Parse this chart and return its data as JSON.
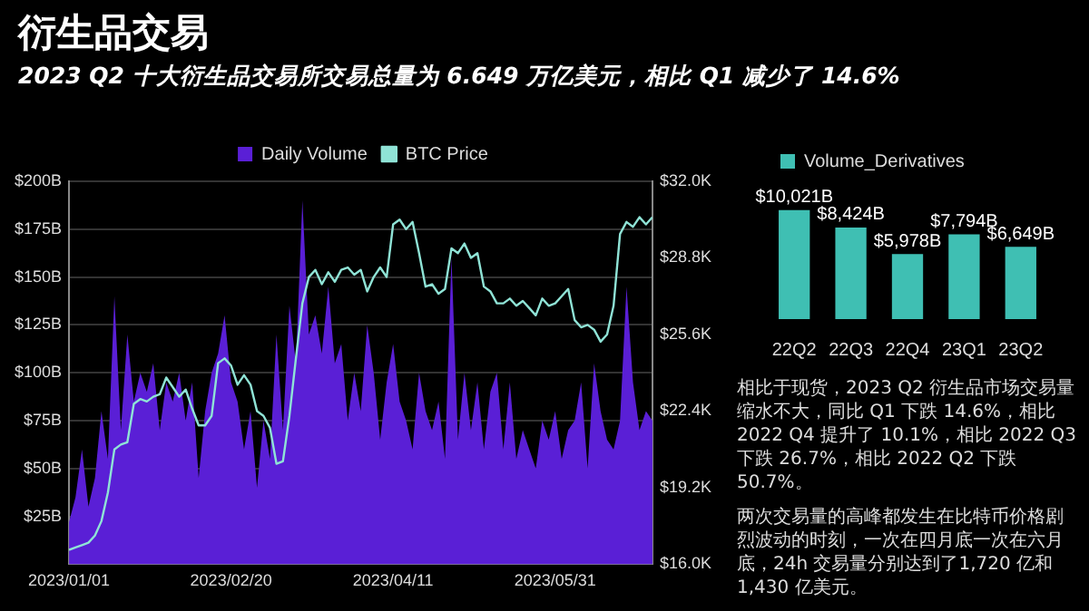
{
  "chart_data": [
    {
      "type": "area",
      "title": "衍生品交易",
      "subtitle": "2023 Q2 十大衍生品交易所交易总量为 6.649 万亿美元，相比 Q1 减少了 14.6%",
      "x": [
        "2023-01-01",
        "2023-01-03",
        "2023-01-05",
        "2023-01-07",
        "2023-01-09",
        "2023-01-11",
        "2023-01-13",
        "2023-01-15",
        "2023-01-17",
        "2023-01-19",
        "2023-01-21",
        "2023-01-23",
        "2023-01-25",
        "2023-01-27",
        "2023-01-29",
        "2023-01-31",
        "2023-02-02",
        "2023-02-04",
        "2023-02-06",
        "2023-02-08",
        "2023-02-10",
        "2023-02-12",
        "2023-02-14",
        "2023-02-16",
        "2023-02-18",
        "2023-02-20",
        "2023-02-22",
        "2023-02-24",
        "2023-02-26",
        "2023-02-28",
        "2023-03-02",
        "2023-03-04",
        "2023-03-06",
        "2023-03-08",
        "2023-03-10",
        "2023-03-12",
        "2023-03-14",
        "2023-03-16",
        "2023-03-18",
        "2023-03-20",
        "2023-03-22",
        "2023-03-24",
        "2023-03-26",
        "2023-03-28",
        "2023-03-30",
        "2023-04-01",
        "2023-04-03",
        "2023-04-05",
        "2023-04-07",
        "2023-04-09",
        "2023-04-11",
        "2023-04-13",
        "2023-04-15",
        "2023-04-17",
        "2023-04-19",
        "2023-04-21",
        "2023-04-23",
        "2023-04-25",
        "2023-04-27",
        "2023-04-29",
        "2023-05-01",
        "2023-05-03",
        "2023-05-05",
        "2023-05-07",
        "2023-05-09",
        "2023-05-11",
        "2023-05-13",
        "2023-05-15",
        "2023-05-17",
        "2023-05-19",
        "2023-05-21",
        "2023-05-23",
        "2023-05-25",
        "2023-05-27",
        "2023-05-29",
        "2023-05-31",
        "2023-06-02",
        "2023-06-04",
        "2023-06-06",
        "2023-06-08",
        "2023-06-10",
        "2023-06-12",
        "2023-06-14",
        "2023-06-16",
        "2023-06-18",
        "2023-06-20",
        "2023-06-22",
        "2023-06-24",
        "2023-06-26",
        "2023-06-28",
        "2023-06-30"
      ],
      "xlim": [
        "2023-01-01",
        "2023-06-30"
      ],
      "xticks": [
        {
          "value": "2023-01-01",
          "label": "2023/01/01"
        },
        {
          "value": "2023-02-20",
          "label": "2023/02/20"
        },
        {
          "value": "2023-04-11",
          "label": "2023/04/11"
        },
        {
          "value": "2023-05-31",
          "label": "2023/05/31"
        }
      ],
      "ylim": [
        0,
        200
      ],
      "yticks": [
        {
          "value": 25,
          "label": "$25B"
        },
        {
          "value": 50,
          "label": "$50B"
        },
        {
          "value": 75,
          "label": "$75B"
        },
        {
          "value": 100,
          "label": "$100B"
        },
        {
          "value": 125,
          "label": "$125B"
        },
        {
          "value": 150,
          "label": "$150B"
        },
        {
          "value": 175,
          "label": "$175B"
        },
        {
          "value": 200,
          "label": "$200B"
        }
      ],
      "y2lim": [
        16,
        32
      ],
      "y2ticks": [
        {
          "value": 16,
          "label": "$16.0K"
        },
        {
          "value": 19.2,
          "label": "$19.2K"
        },
        {
          "value": 22.4,
          "label": "$22.4K"
        },
        {
          "value": 25.6,
          "label": "$25.6K"
        },
        {
          "value": 28.8,
          "label": "$28.8K"
        },
        {
          "value": 32,
          "label": "$32.0K"
        }
      ],
      "series": [
        {
          "name": "Daily Volume",
          "color": "#5a1fd6",
          "values": [
            22,
            35,
            60,
            30,
            45,
            80,
            55,
            140,
            70,
            120,
            85,
            100,
            90,
            105,
            70,
            95,
            85,
            100,
            75,
            95,
            45,
            80,
            100,
            110,
            130,
            95,
            85,
            60,
            80,
            40,
            75,
            55,
            120,
            70,
            135,
            105,
            190,
            120,
            130,
            110,
            145,
            105,
            115,
            75,
            100,
            80,
            125,
            100,
            65,
            95,
            115,
            85,
            75,
            60,
            100,
            80,
            70,
            85,
            55,
            160,
            65,
            100,
            70,
            95,
            60,
            90,
            100,
            60,
            95,
            55,
            70,
            60,
            50,
            75,
            65,
            80,
            55,
            70,
            75,
            95,
            50,
            105,
            80,
            65,
            60,
            75,
            145,
            95,
            70,
            80,
            75
          ]
        },
        {
          "name": "BTC Price",
          "type": "line",
          "axis": "y2",
          "color": "#8fe3d6",
          "values": [
            16.6,
            16.7,
            16.8,
            16.9,
            17.2,
            17.8,
            19.0,
            20.8,
            21.0,
            21.1,
            22.7,
            22.9,
            22.8,
            23.0,
            23.1,
            23.8,
            23.4,
            23.0,
            23.3,
            22.5,
            21.8,
            21.8,
            22.2,
            24.4,
            24.6,
            24.3,
            23.5,
            23.9,
            23.5,
            22.4,
            22.2,
            21.7,
            20.2,
            20.3,
            22.2,
            24.6,
            26.9,
            28.0,
            28.3,
            27.7,
            28.2,
            27.8,
            28.3,
            28.4,
            28.1,
            28.3,
            27.4,
            28.0,
            28.4,
            28.0,
            30.2,
            30.4,
            30.0,
            30.3,
            29.0,
            27.6,
            27.7,
            27.3,
            27.5,
            29.2,
            29.0,
            29.4,
            28.8,
            29.0,
            27.6,
            27.4,
            26.9,
            26.9,
            27.1,
            26.8,
            27.0,
            26.7,
            26.4,
            27.1,
            26.8,
            26.9,
            27.2,
            27.5,
            26.2,
            25.9,
            26.0,
            25.8,
            25.3,
            25.6,
            26.8,
            29.8,
            30.3,
            30.1,
            30.5,
            30.2,
            30.5
          ]
        }
      ],
      "legend": "top",
      "grid": "y",
      "marker": "none"
    },
    {
      "type": "bar",
      "categories": [
        "22Q2",
        "22Q3",
        "22Q4",
        "23Q1",
        "23Q2"
      ],
      "series": [
        {
          "name": "Volume_Derivatives",
          "color": "#3fbfb3",
          "values": [
            10021,
            8424,
            5978,
            7794,
            6649
          ],
          "value_labels": [
            "$10,021B",
            "$8,424B",
            "$5,978B",
            "$7,794B",
            "$6,649B"
          ]
        }
      ],
      "legend": "top left",
      "tick_labels": "x",
      "annotations": [
        "相比于现货，2023 Q2 衍生品市场交易量缩水不大，同比 Q1 下跌 14.6%，相比 2022 Q4 提升了 10.1%，相比 2022 Q3 下跌 26.7%，相比 2022 Q2 下跌 50.7%。",
        "两次交易量的高峰都发生在比特币价格剧烈波动的时刻，一次在四月底一次在六月底，24h 交易量分别达到了1,720 亿和 1,430 亿美元。"
      ]
    }
  ]
}
